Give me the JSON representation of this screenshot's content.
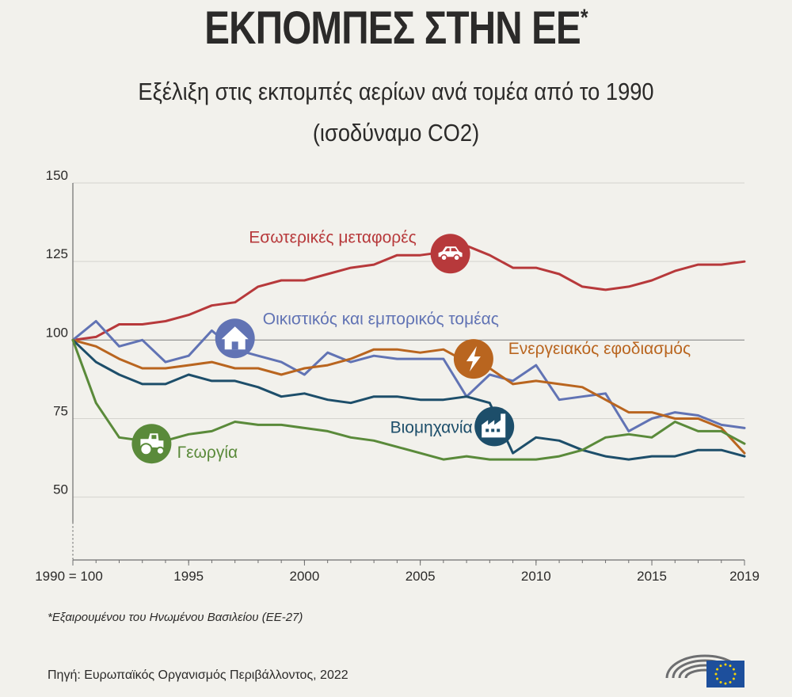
{
  "header": {
    "title": "ΕΚΠΟΜΠΕΣ ΣΤΗΝ ΕΕ",
    "title_mark": "*",
    "subtitle_line1": "Εξέλιξη στις εκπομπές αερίων ανά τομέα από το 1990",
    "subtitle_line2": "(ισοδύναμο CO2)"
  },
  "chart_data": {
    "type": "line",
    "title": "Εξέλιξη στις εκπομπές αερίων ανά τομέα από το 1990 (ισοδύναμο CO2)",
    "xlabel": "",
    "ylabel": "",
    "xlim": [
      1990,
      2019
    ],
    "ylim": [
      30,
      150
    ],
    "grid": true,
    "x": [
      1990,
      1991,
      1992,
      1993,
      1994,
      1995,
      1996,
      1997,
      1998,
      1999,
      2000,
      2001,
      2002,
      2003,
      2004,
      2005,
      2006,
      2007,
      2008,
      2009,
      2010,
      2011,
      2012,
      2013,
      2014,
      2015,
      2016,
      2017,
      2018,
      2019
    ],
    "x_ticks": [
      {
        "value": 1990,
        "label": "1990 = 100"
      },
      {
        "value": 1995,
        "label": "1995"
      },
      {
        "value": 2000,
        "label": "2000"
      },
      {
        "value": 2005,
        "label": "2005"
      },
      {
        "value": 2010,
        "label": "2010"
      },
      {
        "value": 2015,
        "label": "2015"
      },
      {
        "value": 2019,
        "label": "2019"
      }
    ],
    "y_ticks": [
      50,
      75,
      100,
      125,
      150
    ],
    "series": [
      {
        "name": "Εσωτερικές μεταφορές",
        "color": "#b7393b",
        "icon": "car-icon",
        "values": [
          100,
          101,
          105,
          105,
          106,
          108,
          111,
          112,
          117,
          119,
          119,
          121,
          123,
          124,
          127,
          127,
          128,
          130,
          127,
          123,
          123,
          121,
          117,
          116,
          117,
          119,
          122,
          124,
          124,
          125
        ]
      },
      {
        "name": "Οικιστικός και εμπορικός τομέας",
        "color": "#6173b4",
        "icon": "house-icon",
        "values": [
          100,
          106,
          98,
          100,
          93,
          95,
          103,
          97,
          95,
          93,
          89,
          96,
          93,
          95,
          94,
          94,
          94,
          82,
          89,
          87,
          92,
          81,
          82,
          83,
          71,
          75,
          77,
          76,
          73,
          72
        ]
      },
      {
        "name": "Ενεργειακός εφοδιασμός",
        "color": "#b9651f",
        "icon": "lightning-icon",
        "values": [
          100,
          98,
          94,
          91,
          91,
          92,
          93,
          91,
          91,
          89,
          91,
          92,
          94,
          97,
          97,
          96,
          97,
          93,
          91,
          86,
          87,
          86,
          85,
          81,
          77,
          77,
          75,
          75,
          72,
          64
        ]
      },
      {
        "name": "Βιομηχανία",
        "color": "#1d4e6a",
        "icon": "factory-icon",
        "values": [
          100,
          93,
          89,
          86,
          86,
          89,
          87,
          87,
          85,
          82,
          83,
          81,
          80,
          82,
          82,
          81,
          81,
          82,
          80,
          64,
          69,
          68,
          65,
          63,
          62,
          63,
          63,
          65,
          65,
          63
        ]
      },
      {
        "name": "Γεωργία",
        "color": "#5a8a3a",
        "icon": "tractor-icon",
        "values": [
          100,
          80,
          69,
          68,
          68,
          70,
          71,
          74,
          73,
          73,
          72,
          71,
          69,
          68,
          66,
          64,
          62,
          63,
          62,
          62,
          62,
          63,
          65,
          69,
          70,
          69,
          74,
          71,
          71,
          67
        ]
      }
    ]
  },
  "footnote": "*Εξαιρουμένου του Ηνωμένου Βασιλείου (ΕΕ-27)",
  "source": "Πηγή: Ευρωπαϊκός Οργανισμός Περιβάλλοντος, 2022",
  "logo": {
    "name": "european-parliament-logo"
  }
}
